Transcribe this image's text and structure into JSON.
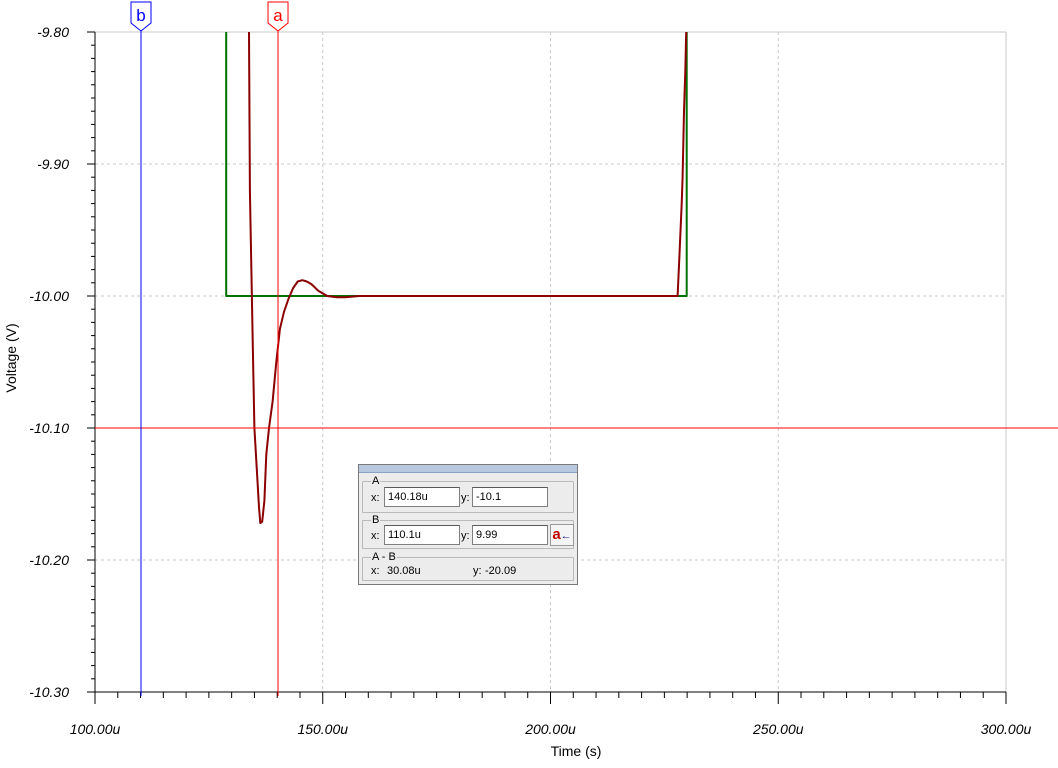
{
  "chart_data": {
    "type": "line",
    "xlabel": "Time (s)",
    "ylabel": "Voltage (V)",
    "xlim": [
      100,
      300
    ],
    "ylim": [
      -10.3,
      -9.8
    ],
    "x_unit_suffix": "u",
    "x_ticks": [
      100,
      150,
      200,
      250,
      300
    ],
    "y_ticks": [
      -9.8,
      -9.9,
      -10.0,
      -10.1,
      -10.2,
      -10.3
    ],
    "x_tick_labels": [
      "100.00u",
      "150.00u",
      "200.00u",
      "250.00u",
      "300.00u"
    ],
    "y_tick_labels": [
      "-9.80",
      "-9.90",
      "-10.00",
      "-10.10",
      "-10.20",
      "-10.30"
    ],
    "grid": true,
    "series": [
      {
        "color": "#007000",
        "x": [
          128.8,
          128.8,
          229.9,
          229.9
        ],
        "y": [
          -9.8,
          -10.0,
          -10.0,
          -9.8
        ]
      },
      {
        "color": "#8b0000",
        "x": [
          133.8,
          134.0,
          134.6,
          135.0,
          135.5,
          136.0,
          136.3,
          136.7,
          137.2,
          137.6,
          138.2,
          139.0,
          139.8,
          140.6,
          141.5,
          142.5,
          143.5,
          144.5,
          145.5,
          146.5,
          147.5,
          149.0,
          151.0,
          153.0,
          155.0,
          158.0,
          170.0,
          200.0,
          220.0,
          227.9,
          228.3,
          228.8,
          229.0,
          229.3,
          229.6,
          229.8
        ],
        "y": [
          -9.8,
          -9.92,
          -10.03,
          -10.1,
          -10.13,
          -10.16,
          -10.172,
          -10.171,
          -10.155,
          -10.12,
          -10.1,
          -10.08,
          -10.05,
          -10.025,
          -10.012,
          -10.002,
          -9.994,
          -9.989,
          -9.988,
          -9.989,
          -9.991,
          -9.996,
          -10.0,
          -10.001,
          -10.001,
          -10.0,
          -10.0,
          -10.0,
          -10.0,
          -10.0,
          -9.97,
          -9.93,
          -9.91,
          -9.86,
          -9.83,
          -9.8
        ]
      }
    ],
    "cursors": {
      "a": {
        "label": "a",
        "x": 140.18,
        "color": "#ff0000"
      },
      "b": {
        "label": "b",
        "x": 110.1,
        "color": "#0000ff"
      },
      "horizontal": {
        "y": -10.1,
        "color": "#ff0000"
      }
    }
  },
  "readout": {
    "group_a": {
      "label": "A",
      "x_label": "x:",
      "x_value": "140.18u",
      "y_label": "y:",
      "y_value": "-10.1"
    },
    "group_b": {
      "label": "B",
      "x_label": "x:",
      "x_value": "110.1u",
      "y_label": "y:",
      "y_value": "9.99",
      "swap_button": "a"
    },
    "group_diff": {
      "label": "A - B",
      "x_label": "x:",
      "x_value": "30.08u",
      "y_label": "y:",
      "y_value": "-20.09"
    }
  }
}
